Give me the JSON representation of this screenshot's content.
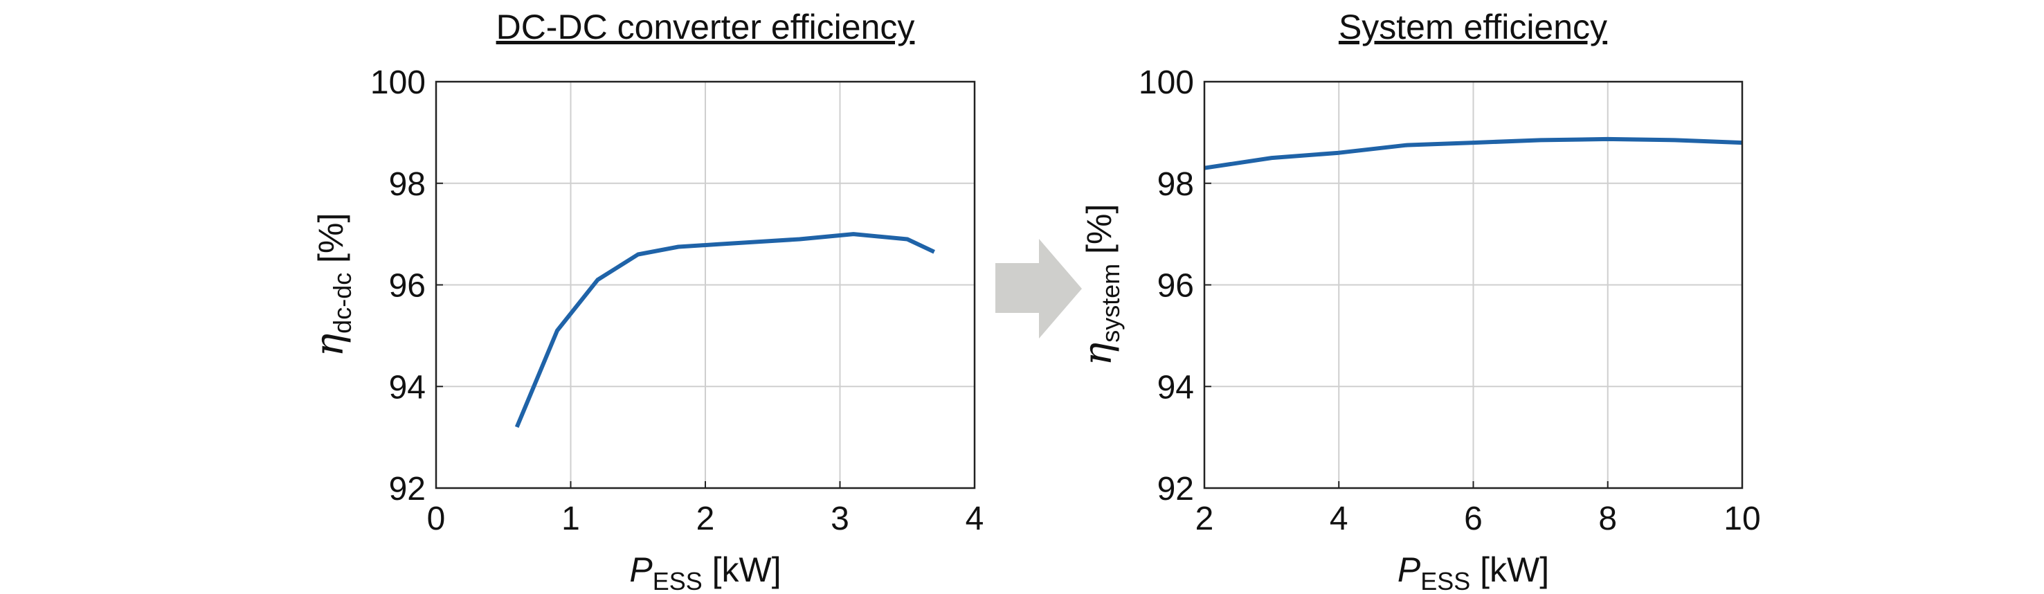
{
  "chart_data": [
    {
      "type": "line",
      "title": "DC-DC converter efficiency",
      "xlabel": {
        "var": "P",
        "sub": "ESS",
        "unit": " [kW]"
      },
      "ylabel": {
        "var": "η",
        "sub": "dc-dc",
        "unit": " [%]"
      },
      "xlim": [
        0,
        4
      ],
      "ylim": [
        92,
        100
      ],
      "xticks": [
        0,
        1,
        2,
        3,
        4
      ],
      "yticks": [
        92,
        94,
        96,
        98,
        100
      ],
      "grid": true,
      "series": [
        {
          "name": "efficiency",
          "color": "#1f63a8",
          "x": [
            0.6,
            0.9,
            1.2,
            1.5,
            1.8,
            2.1,
            2.4,
            2.7,
            3.1,
            3.5,
            3.7
          ],
          "y": [
            93.2,
            95.1,
            96.1,
            96.6,
            96.75,
            96.8,
            96.85,
            96.9,
            97.0,
            96.9,
            96.65
          ]
        }
      ]
    },
    {
      "type": "line",
      "title": "System efficiency",
      "xlabel": {
        "var": "P",
        "sub": "ESS",
        "unit": " [kW]"
      },
      "ylabel": {
        "var": "η",
        "sub": "system",
        "unit": " [%]"
      },
      "xlim": [
        2,
        10
      ],
      "ylim": [
        92,
        100
      ],
      "xticks": [
        2,
        4,
        6,
        8,
        10
      ],
      "yticks": [
        92,
        94,
        96,
        98,
        100
      ],
      "grid": true,
      "series": [
        {
          "name": "efficiency",
          "color": "#1f63a8",
          "x": [
            2,
            3,
            4,
            5,
            6,
            7,
            8,
            9,
            10
          ],
          "y": [
            98.3,
            98.5,
            98.6,
            98.75,
            98.8,
            98.85,
            98.87,
            98.85,
            98.8
          ]
        }
      ]
    }
  ],
  "arrow_color": "#cfcfcc"
}
